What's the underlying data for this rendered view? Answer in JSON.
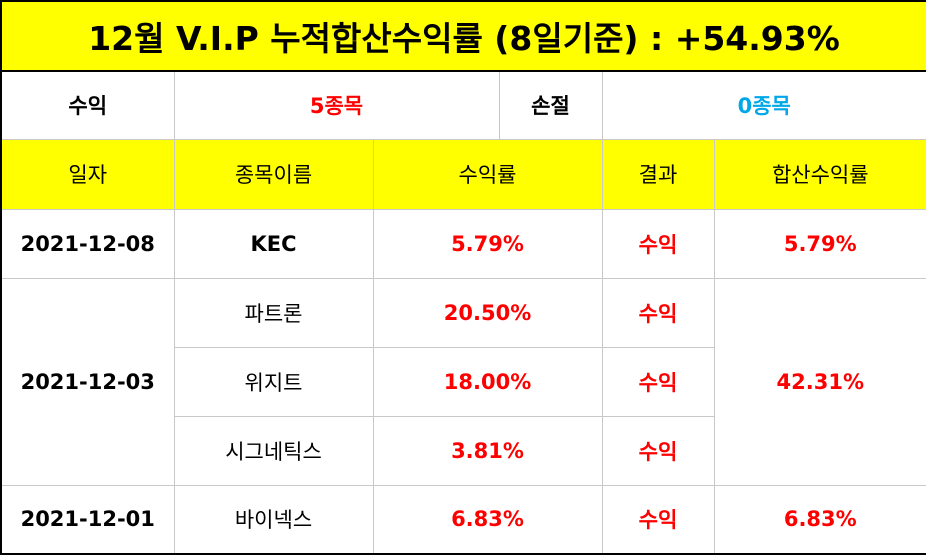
{
  "title": "12월 V.I.P 누적합산수익률 (8일기준) : +54.93%",
  "summary": {
    "profit_label": "수익",
    "profit_value": "5종목",
    "loss_label": "손절",
    "loss_value": "0종목"
  },
  "headers": {
    "date": "일자",
    "name": "종목이름",
    "return": "수익률",
    "result": "결과",
    "total": "합산수익률"
  },
  "groups": [
    {
      "date": "2021-12-08",
      "total": "5.79%",
      "rows": [
        {
          "name": "KEC",
          "return": "5.79%",
          "result": "수익"
        }
      ]
    },
    {
      "date": "2021-12-03",
      "total": "42.31%",
      "rows": [
        {
          "name": "파트론",
          "return": "20.50%",
          "result": "수익"
        },
        {
          "name": "위지트",
          "return": "18.00%",
          "result": "수익"
        },
        {
          "name": "시그네틱스",
          "return": "3.81%",
          "result": "수익"
        }
      ]
    },
    {
      "date": "2021-12-01",
      "total": "6.83%",
      "rows": [
        {
          "name": "바이넥스",
          "return": "6.83%",
          "result": "수익"
        }
      ]
    }
  ],
  "colors": {
    "header_bg": "#ffff00",
    "profit": "#ff0000",
    "loss": "#00a8e8"
  }
}
